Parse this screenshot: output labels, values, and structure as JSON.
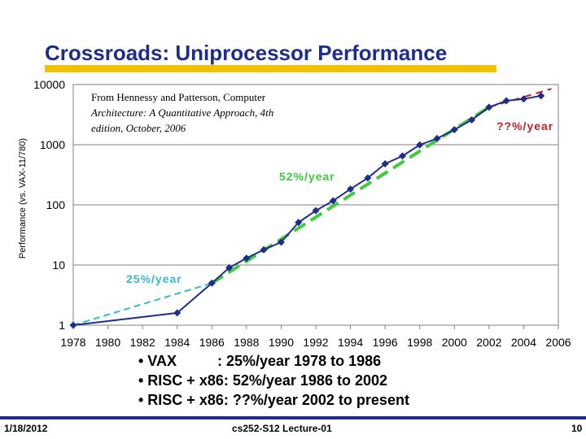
{
  "slide": {
    "title": "Crossroads: Uniprocessor Performance",
    "bullets": [
      "• VAX          : 25%/year 1978 to 1986",
      "• RISC + x86: 52%/year 1986 to 2002",
      "• RISC + x86: ??%/year 2002 to present"
    ],
    "footer_date": "1/18/2012",
    "footer_course": "cs252-S12 Lecture-01",
    "footer_page": "10"
  },
  "colors": {
    "title": "#1f2d8a",
    "accent_rule": "#f2c000",
    "series": "#1f2d8a",
    "trend_25": "#3bb8cc",
    "trend_52": "#3ccc3c",
    "trend_q": "#c0202a"
  },
  "chart_data": {
    "type": "line",
    "title": "",
    "xlabel": "",
    "ylabel": "Performance (vs. VAX-11/780)",
    "yscale": "log",
    "ylim": [
      1,
      10000
    ],
    "xlim": [
      1978,
      2006
    ],
    "yticks": [
      1,
      10,
      100,
      1000,
      10000
    ],
    "ytick_labels": [
      "1",
      "10",
      "100",
      "1000",
      "10000"
    ],
    "xticks": [
      1978,
      1980,
      1982,
      1984,
      1986,
      1988,
      1990,
      1992,
      1994,
      1996,
      1998,
      2000,
      2002,
      2004,
      2006
    ],
    "xtick_labels": [
      "1978",
      "1980",
      "1982",
      "1984",
      "1986",
      "1988",
      "1990",
      "1992",
      "1994",
      "1996",
      "1998",
      "2000",
      "2002",
      "2004",
      "2006"
    ],
    "series": [
      {
        "name": "Performance",
        "x": [
          1978,
          1984,
          1986,
          1987,
          1988,
          1989,
          1990,
          1991,
          1992,
          1993,
          1994,
          1995,
          1996,
          1997,
          1998,
          1999,
          2000,
          2001,
          2002,
          2003,
          2004,
          2005
        ],
        "y": [
          1,
          1.6,
          5,
          9,
          13,
          18,
          24,
          51,
          80,
          117,
          183,
          280,
          481,
          649,
          993,
          1267,
          1779,
          2584,
          4195,
          5364,
          5764,
          6505
        ]
      }
    ],
    "trends": [
      {
        "label": "25%/year",
        "x": [
          1978,
          1986
        ],
        "y": [
          1,
          5
        ]
      },
      {
        "label": "52%/year",
        "x": [
          1986,
          2002
        ],
        "y": [
          5,
          4200
        ]
      },
      {
        "label": "??%/year",
        "x": [
          2002,
          2005.6
        ],
        "y": [
          4200,
          8500
        ]
      }
    ],
    "annotations": [
      "From Hennessy and Patterson, Computer",
      "Architecture: A Quantitative Approach, 4th",
      "edition, October, 2006"
    ]
  }
}
